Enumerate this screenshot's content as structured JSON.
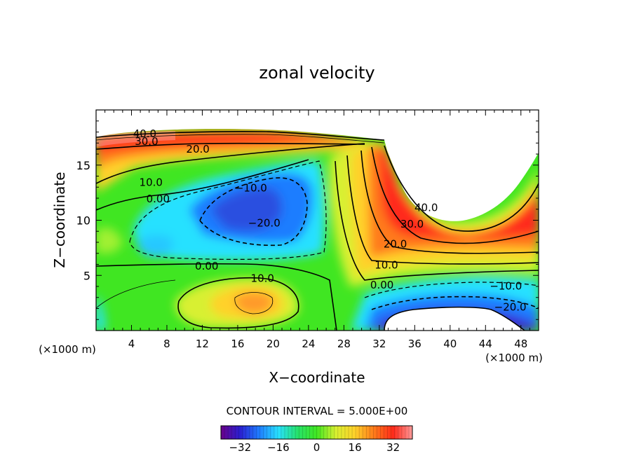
{
  "chart_data": {
    "type": "heatmap",
    "title": "zonal velocity",
    "xlabel": "X−coordinate",
    "ylabel": "Z−coordinate",
    "x_unit_note_left": "(×1000 m)",
    "x_unit_note_right": "(×1000 m)",
    "xlim": [
      0,
      50
    ],
    "ylim": [
      0,
      20
    ],
    "x_ticks": [
      "4",
      "8",
      "12",
      "16",
      "20",
      "24",
      "28",
      "32",
      "36",
      "40",
      "44",
      "48"
    ],
    "y_ticks": [
      "5",
      "10",
      "15"
    ],
    "x_tick_values": [
      4,
      8,
      12,
      16,
      20,
      24,
      28,
      32,
      36,
      40,
      44,
      48
    ],
    "y_tick_values": [
      5,
      10,
      15
    ],
    "contour_interval_text": "CONTOUR INTERVAL = 5.000E+00",
    "colorbar": {
      "range": [
        -40,
        40
      ],
      "tick_labels": [
        "−32",
        "−16",
        "0",
        "16",
        "32"
      ],
      "tick_values": [
        -32,
        -16,
        0,
        16,
        32
      ],
      "colors": [
        "#6a008a",
        "#2a1fd0",
        "#1f7dff",
        "#28e1ff",
        "#26e26b",
        "#40e622",
        "#d8f030",
        "#ffd12a",
        "#ff7a1a",
        "#ff2a1a",
        "#ff9a9a"
      ]
    },
    "contour_labels": [
      {
        "text": "40.0",
        "x": 5.5,
        "y": 17.9
      },
      {
        "text": "30.0",
        "x": 5.7,
        "y": 17.2
      },
      {
        "text": "20.0",
        "x": 11.5,
        "y": 16.5
      },
      {
        "text": "10.0",
        "x": 6.2,
        "y": 13.5
      },
      {
        "text": "0.00",
        "x": 7.0,
        "y": 12.0
      },
      {
        "text": "−10.0",
        "x": 17.5,
        "y": 13.0
      },
      {
        "text": "−20.0",
        "x": 19.0,
        "y": 9.8
      },
      {
        "text": "0.00",
        "x": 12.5,
        "y": 5.9
      },
      {
        "text": "10.0",
        "x": 18.8,
        "y": 4.8
      },
      {
        "text": "40.0",
        "x": 37.3,
        "y": 11.2
      },
      {
        "text": "30.0",
        "x": 35.7,
        "y": 9.7
      },
      {
        "text": "20.0",
        "x": 33.8,
        "y": 7.9
      },
      {
        "text": "10.0",
        "x": 32.8,
        "y": 6.0
      },
      {
        "text": "0.00",
        "x": 32.3,
        "y": 4.2
      },
      {
        "text": "−10.0",
        "x": 46.3,
        "y": 4.1
      },
      {
        "text": "−20.0",
        "x": 46.8,
        "y": 2.2
      }
    ]
  }
}
